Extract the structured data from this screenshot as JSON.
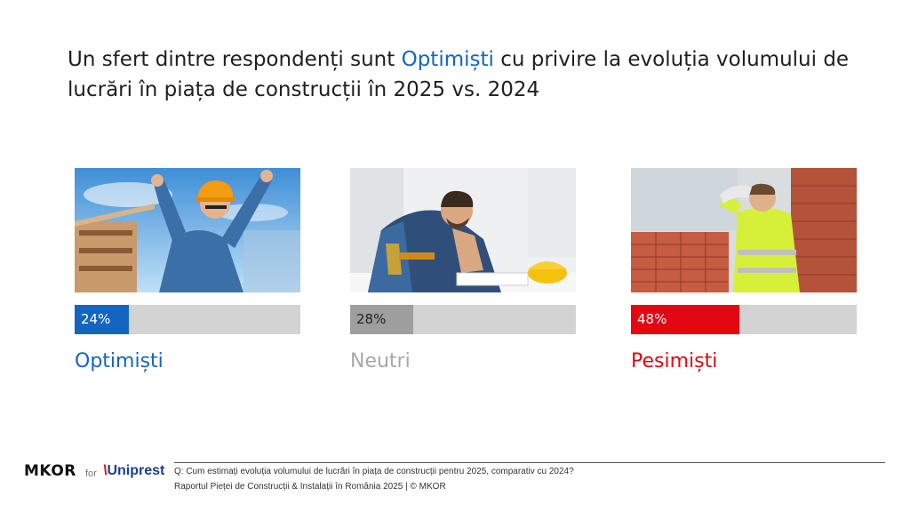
{
  "title": {
    "part1": "Un sfert dintre respondenți sunt ",
    "highlight": "Optimiști",
    "part2": " cu privire la evoluția volumului de lucrări în piața de construcții în 2025 vs. 2024"
  },
  "chart_data": {
    "type": "bar",
    "categories": [
      "Optimiști",
      "Neutri",
      "Pesimiști"
    ],
    "values": [
      24,
      28,
      48
    ],
    "value_labels": [
      "24%",
      "28%",
      "48%"
    ],
    "colors": [
      "#1565c0",
      "#9e9e9e",
      "#e30613"
    ],
    "label_colors": [
      "#1565c0",
      "#a8a8a8",
      "#e30613"
    ],
    "ylim": [
      0,
      100
    ]
  },
  "footer": {
    "logo_mkor": "MKOR",
    "logo_for": "for",
    "logo_client": "Uniprest",
    "question": "Q: Cum estimați evoluția volumului de lucrări în piața de construcții pentru 2025, comparativ cu 2024?",
    "source": "Raportul Pieței de Construcții & Instalații în România 2025 | © MKOR"
  }
}
